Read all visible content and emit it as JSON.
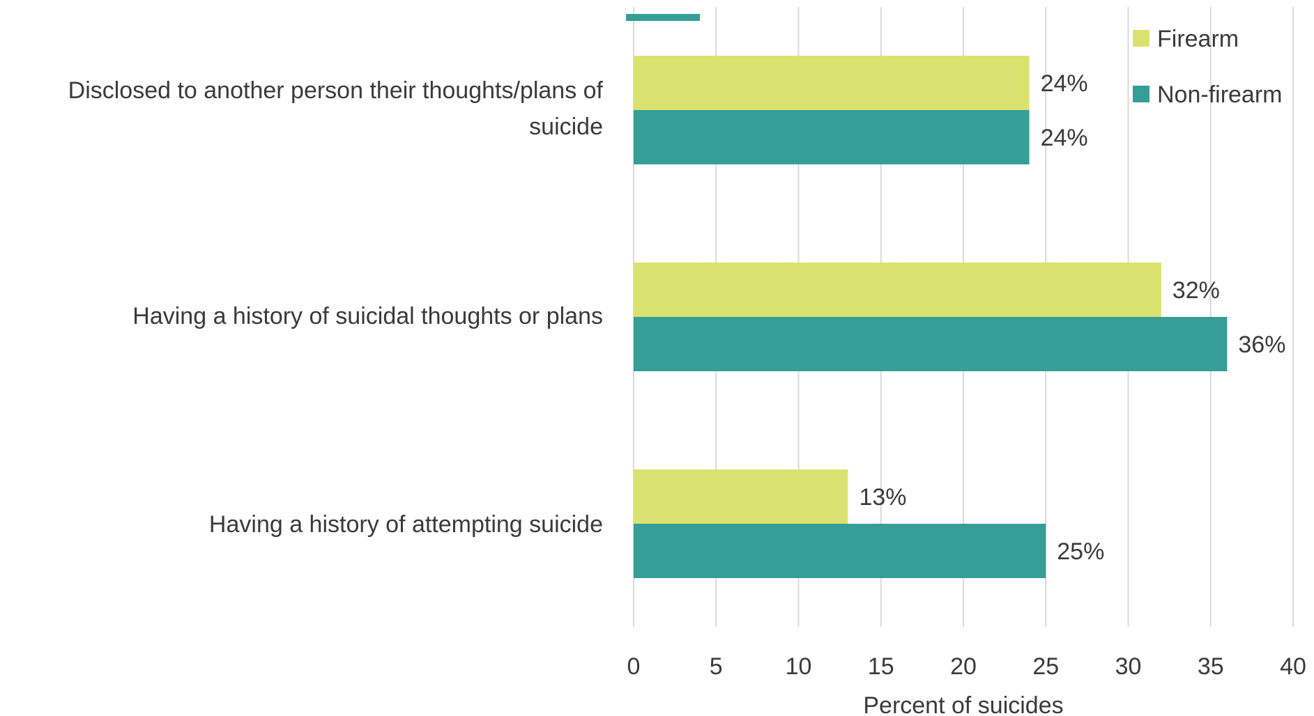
{
  "chart_data": {
    "type": "bar",
    "orientation": "horizontal",
    "categories": [
      "Disclosed to another person their thoughts/plans of suicide",
      "Having a history of suicidal thoughts or plans",
      "Having a history of attempting suicide"
    ],
    "series": [
      {
        "name": "Firearm",
        "color": "#d9e26e",
        "values": [
          24,
          32,
          13
        ],
        "labels": [
          "24%",
          "32%",
          "13%"
        ]
      },
      {
        "name": "Non-firearm",
        "color": "#359e96",
        "values": [
          24,
          36,
          25
        ],
        "labels": [
          "24%",
          "36%",
          "25%"
        ]
      }
    ],
    "xlabel": "Percent of suicides",
    "xlim": [
      0,
      40
    ],
    "xticks": [
      "0",
      "5",
      "10",
      "15",
      "20",
      "25",
      "30",
      "35",
      "40"
    ],
    "grid": true,
    "legend_position": "top-right"
  }
}
